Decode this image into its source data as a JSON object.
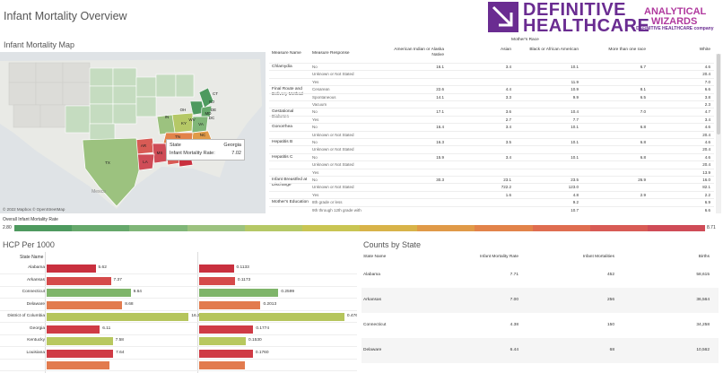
{
  "dashboard": {
    "title": "Infant Mortality Overview"
  },
  "logo": {
    "brand_line1": "DEFINITIVE",
    "brand_line2": "HEALTHCARE",
    "partner_line1": "ANALYTICAL",
    "partner_line2": "WIZARDS",
    "partner_line3": "a DEFINITIVE HEALTHCARE company",
    "brand_color": "#6a2c91",
    "partner_color": "#b0399e"
  },
  "map": {
    "title": "Infant Mortality Map",
    "attribution": "© 2022 Mapbox  © OpenStreetMap",
    "tooltip": {
      "state_label": "State",
      "state_value": "Georgia",
      "rate_label": "Infant Mortality Rate:",
      "rate_value": "7.02"
    },
    "state_labels": [
      "TX",
      "AR",
      "MS",
      "AL",
      "GA",
      "LA",
      "TN",
      "KY",
      "SC",
      "NC",
      "VA",
      "WV",
      "OH",
      "IN",
      "MD",
      "DE",
      "DC",
      "NJ",
      "CT"
    ],
    "place_label": "Mexico"
  },
  "measure_table": {
    "group_header": "Mother's Race",
    "columns": [
      "Measure Name",
      "Measure Response",
      "American Indian or Alaska Native",
      "Asian",
      "Black or African American",
      "More than one race",
      "White"
    ],
    "rows": [
      {
        "measure": "Chlamydia",
        "response": "No",
        "values": [
          "16.1",
          "3.4",
          "10.1",
          "6.7",
          "4.6"
        ]
      },
      {
        "measure": "",
        "response": "Unknown or Not Stated",
        "values": [
          "",
          "",
          "",
          "",
          "20.4"
        ]
      },
      {
        "measure": "",
        "response": "Yes",
        "values": [
          "",
          "",
          "11.9",
          "",
          "7.0"
        ]
      },
      {
        "measure": "Final Route and Delivery Method",
        "response": "Cesarean",
        "values": [
          "22.6",
          "4.4",
          "10.9",
          "8.1",
          "6.6"
        ]
      },
      {
        "measure": "",
        "response": "Spontaneous",
        "values": [
          "14.1",
          "3.3",
          "9.9",
          "6.5",
          "3.8"
        ]
      },
      {
        "measure": "",
        "response": "Vacuum",
        "values": [
          "",
          "",
          "",
          "",
          "2.3"
        ]
      },
      {
        "measure": "Gestational Diabetes",
        "response": "No",
        "values": [
          "17.1",
          "3.6",
          "10.4",
          "7.0",
          "4.7"
        ]
      },
      {
        "measure": "",
        "response": "Yes",
        "values": [
          "",
          "2.7",
          "7.7",
          "",
          "3.4"
        ]
      },
      {
        "measure": "Gonorrhea",
        "response": "No",
        "values": [
          "16.4",
          "3.4",
          "10.1",
          "6.8",
          "4.6"
        ]
      },
      {
        "measure": "",
        "response": "Unknown or Not Stated",
        "values": [
          "",
          "",
          "",
          "",
          "20.4"
        ]
      },
      {
        "measure": "Hepatitis B",
        "response": "No",
        "values": [
          "16.3",
          "3.5",
          "10.1",
          "6.8",
          "4.6"
        ]
      },
      {
        "measure": "",
        "response": "Unknown or Not Stated",
        "values": [
          "",
          "",
          "",
          "",
          "20.4"
        ]
      },
      {
        "measure": "Hepatitis C",
        "response": "No",
        "values": [
          "15.9",
          "3.4",
          "10.1",
          "6.8",
          "4.6"
        ]
      },
      {
        "measure": "",
        "response": "Unknown or Not Stated",
        "values": [
          "",
          "",
          "",
          "",
          "20.4"
        ]
      },
      {
        "measure": "",
        "response": "Yes",
        "values": [
          "",
          "",
          "",
          "",
          "13.9"
        ]
      },
      {
        "measure": "Infant Breastfed at Discharge",
        "response": "No",
        "values": [
          "30.3",
          "23.1",
          "23.5",
          "26.9",
          "16.0"
        ]
      },
      {
        "measure": "",
        "response": "Unknown or Not Stated",
        "values": [
          "",
          "722.2",
          "123.0",
          "",
          "82.1"
        ]
      },
      {
        "measure": "",
        "response": "Yes",
        "values": [
          "",
          "1.6",
          "4.8",
          "2.9",
          "2.2"
        ]
      },
      {
        "measure": "Mother's Education",
        "response": "8th grade or less",
        "values": [
          "",
          "",
          "9.2",
          "",
          "6.9"
        ]
      },
      {
        "measure": "",
        "response": "9th through 12th grade with",
        "values": [
          "",
          "",
          "10.7",
          "",
          "6.6"
        ]
      }
    ]
  },
  "legend": {
    "title": "Overall Infant Mortality Rate",
    "min_label": "2.80",
    "max_label": "8.71",
    "colors": [
      "#4e9a5f",
      "#66a86b",
      "#80b678",
      "#9cc27f",
      "#b5c866",
      "#c9c553",
      "#d8b349",
      "#e09a48",
      "#e2834a",
      "#df6d50",
      "#d85b55",
      "#cf4c57"
    ]
  },
  "hcp": {
    "title": "HCP Per 1000",
    "header": "State Name",
    "rows": [
      {
        "state": "Alabama",
        "v1": 5.62,
        "v1_label": "5.62",
        "c1": "#c9303e",
        "v2": 0.1133,
        "v2_label": "0.1133",
        "c2": "#c9303e"
      },
      {
        "state": "Arkansas",
        "v1": 7.37,
        "v1_label": "7.37",
        "c1": "#d54a4a",
        "v2": 0.1173,
        "v2_label": "0.1173",
        "c2": "#d54a4a"
      },
      {
        "state": "Connecticut",
        "v1": 9.64,
        "v1_label": "9.64",
        "c1": "#7fb56a",
        "v2": 0.2599,
        "v2_label": "0.2599",
        "c2": "#7fb56a"
      },
      {
        "state": "Delaware",
        "v1": 8.68,
        "v1_label": "8.68",
        "c1": "#e27b4e",
        "v2": 0.2013,
        "v2_label": "0.2013",
        "c2": "#e27b4e"
      },
      {
        "state": "District of Columbia",
        "v1": 16.32,
        "v1_label": "16.32",
        "c1": "#b5c55c",
        "v2": 0.4761,
        "v2_label": "0.4761",
        "c2": "#b5c55c"
      },
      {
        "state": "Georgia",
        "v1": 6.11,
        "v1_label": "6.11",
        "c1": "#cf3b45",
        "v2": 0.1774,
        "v2_label": "0.1774",
        "c2": "#cf3b45"
      },
      {
        "state": "Kentucky",
        "v1": 7.58,
        "v1_label": "7.58",
        "c1": "#b8c85f",
        "v2": 0.153,
        "v2_label": "0.1530",
        "c2": "#b8c85f"
      },
      {
        "state": "Louisiana",
        "v1": 7.64,
        "v1_label": "7.64",
        "c1": "#cf3b45",
        "v2": 0.176,
        "v2_label": "0.1760",
        "c2": "#cf3b45"
      },
      {
        "state": "",
        "v1": 7.2,
        "v1_label": "",
        "c1": "#e27b4e",
        "v2": 0.15,
        "v2_label": "",
        "c2": "#e27b4e"
      }
    ]
  },
  "counts": {
    "title": "Counts by State",
    "columns": [
      "State Name",
      "Infant Mortality Rate",
      "Infant Mortalities",
      "Births"
    ],
    "rows": [
      {
        "state": "Alabama",
        "rate": "7.71",
        "mortalities": "452",
        "births": "58,615"
      },
      {
        "state": "Arkansas",
        "rate": "7.00",
        "mortalities": "256",
        "births": "36,564"
      },
      {
        "state": "Connecticut",
        "rate": "4.38",
        "mortalities": "150",
        "births": "34,258"
      },
      {
        "state": "Delaware",
        "rate": "6.44",
        "mortalities": "68",
        "births": "10,562"
      }
    ]
  }
}
